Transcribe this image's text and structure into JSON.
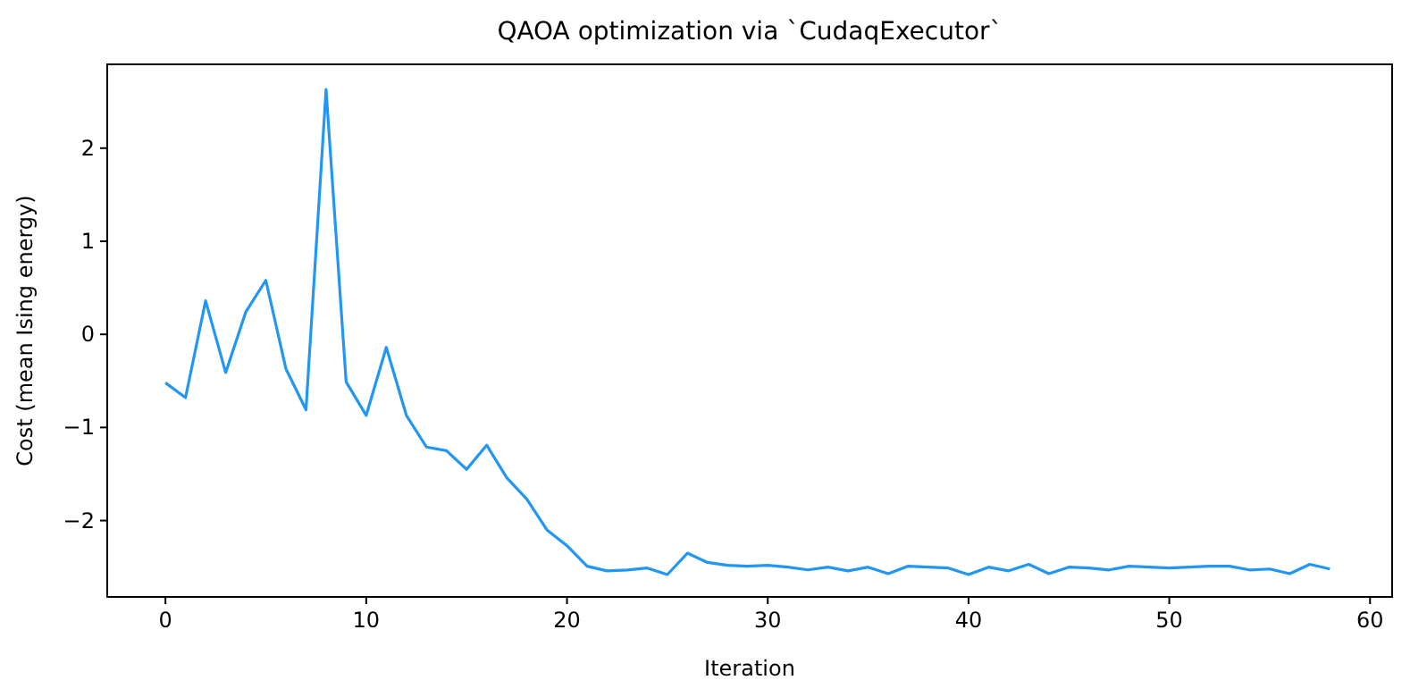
{
  "chart_data": {
    "type": "line",
    "title": "QAOA optimization via `CudaqExecutor`",
    "xlabel": "Iteration",
    "ylabel": "Cost (mean Ising energy)",
    "x": [
      0,
      1,
      2,
      3,
      4,
      5,
      6,
      7,
      8,
      9,
      10,
      11,
      12,
      13,
      14,
      15,
      16,
      17,
      18,
      19,
      20,
      21,
      22,
      23,
      24,
      25,
      26,
      27,
      28,
      29,
      30,
      31,
      32,
      33,
      34,
      35,
      36,
      37,
      38,
      39,
      40,
      41,
      42,
      43,
      44,
      45,
      46,
      47,
      48,
      49,
      50,
      51,
      52,
      53,
      54,
      55,
      56,
      57,
      58
    ],
    "series": [
      {
        "color": "#2196f3",
        "values": [
          -0.52,
          -0.68,
          0.36,
          -0.41,
          0.24,
          0.58,
          -0.37,
          -0.81,
          2.63,
          -0.51,
          -0.87,
          -0.14,
          -0.87,
          -1.21,
          -1.25,
          -1.45,
          -1.19,
          -1.54,
          -1.77,
          -2.1,
          -2.27,
          -2.49,
          -2.54,
          -2.53,
          -2.51,
          -2.58,
          -2.35,
          -2.45,
          -2.48,
          -2.49,
          -2.48,
          -2.5,
          -2.53,
          -2.5,
          -2.54,
          -2.5,
          -2.57,
          -2.49,
          -2.5,
          -2.51,
          -2.58,
          -2.5,
          -2.54,
          -2.47,
          -2.57,
          -2.5,
          -2.51,
          -2.53,
          -2.49,
          -2.5,
          -2.51,
          -2.5,
          -2.49,
          -2.49,
          -2.53,
          -2.52,
          -2.57,
          -2.47,
          -2.52
        ]
      }
    ],
    "xlim": [
      -2.9,
      61.1
    ],
    "ylim": [
      -2.82,
      2.9
    ],
    "xticks": [
      0,
      10,
      20,
      30,
      40,
      50,
      60
    ],
    "yticks": [
      -2,
      -1,
      0,
      1,
      2
    ],
    "grid": false,
    "line_style": "solid",
    "marker": "none"
  }
}
